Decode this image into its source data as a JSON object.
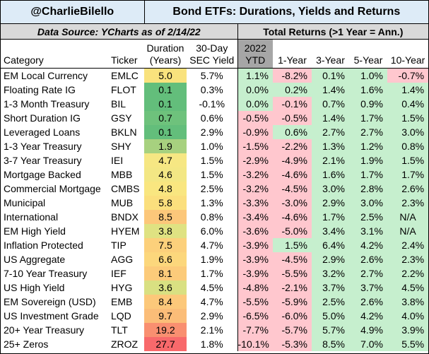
{
  "header": {
    "handle": "@CharlieBilello",
    "title": "Bond ETFs: Durations, Yields and Returns",
    "source": "Data Source: YCharts as of 2/14/22",
    "returns_title": "Total Returns (>1 Year = Ann.)"
  },
  "columns": {
    "category": "Category",
    "ticker": "Ticker",
    "duration_l1": "Duration",
    "duration_l2": "(Years)",
    "yield_l1": "30-Day",
    "yield_l2": "SEC Yield",
    "ytd_l1": "2022",
    "ytd_l2": "YTD",
    "y1": "1-Year",
    "y3": "3-Year",
    "y5": "5-Year",
    "y10": "10-Year"
  },
  "colors": {
    "header_blue": "#ddebf7",
    "header_gray": "#d9d9d9",
    "ytd_header": "#a6a6a6",
    "negative": "#ffc7ce",
    "positive": "#c6efce"
  },
  "rows": [
    {
      "category": "EM Local Currency",
      "ticker": "EMLC",
      "duration": "5.0",
      "yield": "5.7%",
      "ytd": "1.1%",
      "y1": "-8.2%",
      "y3": "0.1%",
      "y5": "1.0%",
      "y10": "-0.7%",
      "dur_color": "#f9e27d"
    },
    {
      "category": "Floating Rate IG",
      "ticker": "FLOT",
      "duration": "0.1",
      "yield": "0.3%",
      "ytd": "0.0%",
      "y1": "0.2%",
      "y3": "1.4%",
      "y5": "1.6%",
      "y10": "1.4%",
      "dur_color": "#63be7b"
    },
    {
      "category": "1-3 Month Treasury",
      "ticker": "BIL",
      "duration": "0.1",
      "yield": "-0.1%",
      "ytd": "0.0%",
      "y1": "-0.1%",
      "y3": "0.7%",
      "y5": "0.9%",
      "y10": "0.4%",
      "dur_color": "#63be7b"
    },
    {
      "category": "Short Duration IG",
      "ticker": "GSY",
      "duration": "0.7",
      "yield": "0.6%",
      "ytd": "-0.5%",
      "y1": "-0.5%",
      "y3": "1.4%",
      "y5": "1.7%",
      "y10": "1.5%",
      "dur_color": "#6ec27c"
    },
    {
      "category": "Leveraged Loans",
      "ticker": "BKLN",
      "duration": "0.1",
      "yield": "2.9%",
      "ytd": "-0.9%",
      "y1": "0.6%",
      "y3": "2.7%",
      "y5": "2.7%",
      "y10": "3.0%",
      "dur_color": "#63be7b"
    },
    {
      "category": "1-3 Year Treasury",
      "ticker": "SHY",
      "duration": "1.9",
      "yield": "1.0%",
      "ytd": "-1.5%",
      "y1": "-2.2%",
      "y3": "1.3%",
      "y5": "1.2%",
      "y10": "0.8%",
      "dur_color": "#a7d17f"
    },
    {
      "category": "3-7 Year Treasury",
      "ticker": "IEI",
      "duration": "4.7",
      "yield": "1.5%",
      "ytd": "-2.9%",
      "y1": "-4.9%",
      "y3": "2.1%",
      "y5": "1.9%",
      "y10": "1.5%",
      "dur_color": "#f6e783"
    },
    {
      "category": "Mortgage Backed",
      "ticker": "MBB",
      "duration": "4.6",
      "yield": "1.5%",
      "ytd": "-3.2%",
      "y1": "-4.6%",
      "y3": "1.6%",
      "y5": "1.7%",
      "y10": "1.7%",
      "dur_color": "#f3e784"
    },
    {
      "category": "Commercial Mortgage",
      "ticker": "CMBS",
      "duration": "4.8",
      "yield": "2.5%",
      "ytd": "-3.2%",
      "y1": "-4.5%",
      "y3": "3.0%",
      "y5": "2.8%",
      "y10": "2.6%",
      "dur_color": "#f9e680"
    },
    {
      "category": "Municipal",
      "ticker": "MUB",
      "duration": "5.8",
      "yield": "1.3%",
      "ytd": "-3.3%",
      "y1": "-3.0%",
      "y3": "2.9%",
      "y5": "3.0%",
      "y10": "2.3%",
      "dur_color": "#fbdf7d"
    },
    {
      "category": "International",
      "ticker": "BNDX",
      "duration": "8.5",
      "yield": "0.8%",
      "ytd": "-3.4%",
      "y1": "-4.6%",
      "y3": "1.7%",
      "y5": "2.5%",
      "y10": "N/A",
      "dur_color": "#fcc77a"
    },
    {
      "category": "EM High Yield",
      "ticker": "HYEM",
      "duration": "3.8",
      "yield": "6.0%",
      "ytd": "-3.6%",
      "y1": "-5.0%",
      "y3": "3.4%",
      "y5": "3.1%",
      "y10": "N/A",
      "dur_color": "#dfe282"
    },
    {
      "category": "Inflation Protected",
      "ticker": "TIP",
      "duration": "7.5",
      "yield": "4.7%",
      "ytd": "-3.9%",
      "y1": "1.5%",
      "y3": "6.4%",
      "y5": "4.2%",
      "y10": "2.4%",
      "dur_color": "#fcd07b"
    },
    {
      "category": "US Aggregate",
      "ticker": "AGG",
      "duration": "6.6",
      "yield": "1.9%",
      "ytd": "-3.9%",
      "y1": "-4.5%",
      "y3": "2.9%",
      "y5": "2.6%",
      "y10": "2.3%",
      "dur_color": "#fcd77c"
    },
    {
      "category": "7-10 Year Treasury",
      "ticker": "IEF",
      "duration": "8.1",
      "yield": "1.7%",
      "ytd": "-3.9%",
      "y1": "-5.5%",
      "y3": "3.2%",
      "y5": "2.7%",
      "y10": "2.2%",
      "dur_color": "#fccb7a"
    },
    {
      "category": "US High Yield",
      "ticker": "HYG",
      "duration": "3.6",
      "yield": "4.5%",
      "ytd": "-4.8%",
      "y1": "-2.1%",
      "y3": "3.7%",
      "y5": "3.7%",
      "y10": "4.5%",
      "dur_color": "#d9e082"
    },
    {
      "category": "EM Sovereign (USD)",
      "ticker": "EMB",
      "duration": "8.4",
      "yield": "4.7%",
      "ytd": "-5.5%",
      "y1": "-5.9%",
      "y3": "2.5%",
      "y5": "2.6%",
      "y10": "3.8%",
      "dur_color": "#fcc87a"
    },
    {
      "category": "US Investment Grade",
      "ticker": "LQD",
      "duration": "9.7",
      "yield": "2.9%",
      "ytd": "-6.5%",
      "y1": "-6.0%",
      "y3": "5.0%",
      "y5": "4.2%",
      "y10": "4.0%",
      "dur_color": "#fbbd78"
    },
    {
      "category": "20+ Year Treasury",
      "ticker": "TLT",
      "duration": "19.2",
      "yield": "2.1%",
      "ytd": "-7.7%",
      "y1": "-5.7%",
      "y3": "5.7%",
      "y5": "4.9%",
      "y10": "3.9%",
      "dur_color": "#f98f70"
    },
    {
      "category": "25+ Zeros",
      "ticker": "ZROZ",
      "duration": "27.7",
      "yield": "1.8%",
      "ytd": "-10.1%",
      "y1": "-5.3%",
      "y3": "8.5%",
      "y5": "7.0%",
      "y10": "5.5%",
      "dur_color": "#f8696b"
    }
  ]
}
